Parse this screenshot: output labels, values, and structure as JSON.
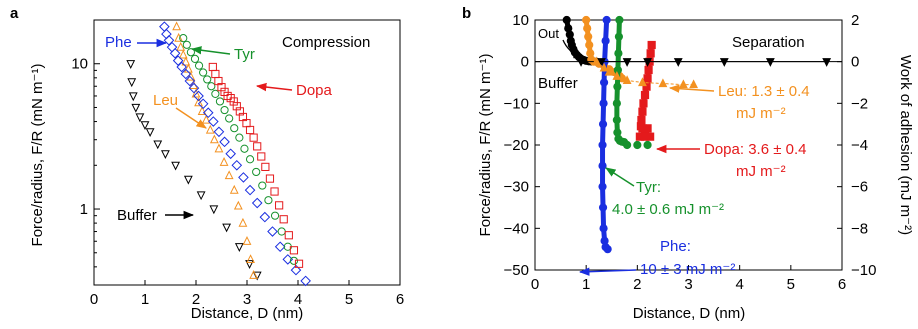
{
  "chart_data": [
    {
      "panel": "a",
      "type": "scatter",
      "title": "Compression",
      "xlabel": "Distance, D (nm)",
      "ylabel": "Force/radius, F/R (mN m⁻¹)",
      "xlim": [
        0,
        6
      ],
      "ylim": [
        0.3,
        20
      ],
      "yscale": "log",
      "xticks": [
        "0",
        "1",
        "2",
        "3",
        "4",
        "5",
        "6"
      ],
      "yticks": [
        {
          "value": 1,
          "label": "1"
        },
        {
          "value": 10,
          "label": "10"
        }
      ],
      "grid": false,
      "series": [
        {
          "name": "Buffer",
          "color": "#000000",
          "marker": "triangle-down",
          "points": [
            [
              0.72,
              10
            ],
            [
              0.74,
              7.5
            ],
            [
              0.77,
              6
            ],
            [
              0.82,
              5
            ],
            [
              0.9,
              4.3
            ],
            [
              1.0,
              3.8
            ],
            [
              1.1,
              3.4
            ],
            [
              1.25,
              2.8
            ],
            [
              1.4,
              2.4
            ],
            [
              1.6,
              2.0
            ],
            [
              1.85,
              1.6
            ],
            [
              2.1,
              1.25
            ],
            [
              2.35,
              1.0
            ],
            [
              2.6,
              0.75
            ],
            [
              2.85,
              0.55
            ],
            [
              3.05,
              0.42
            ],
            [
              3.2,
              0.35
            ]
          ]
        },
        {
          "name": "Leu",
          "color": "#f39120",
          "marker": "triangle-up",
          "points": [
            [
              1.62,
              18
            ],
            [
              1.66,
              15
            ],
            [
              1.7,
              13
            ],
            [
              1.75,
              11.5
            ],
            [
              1.8,
              10.3
            ],
            [
              1.85,
              9.2
            ],
            [
              1.9,
              8.1
            ],
            [
              1.95,
              7.1
            ],
            [
              2.0,
              6.2
            ],
            [
              2.05,
              5.4
            ],
            [
              2.12,
              4.7
            ],
            [
              2.2,
              4.1
            ],
            [
              2.28,
              3.5
            ],
            [
              2.36,
              3.0
            ],
            [
              2.45,
              2.6
            ],
            [
              2.55,
              2.1
            ],
            [
              2.65,
              1.7
            ],
            [
              2.75,
              1.35
            ],
            [
              2.83,
              1.05
            ],
            [
              2.92,
              0.8
            ],
            [
              3.0,
              0.6
            ],
            [
              3.07,
              0.45
            ],
            [
              3.13,
              0.35
            ]
          ]
        },
        {
          "name": "Phe",
          "color": "#1a2ee0",
          "marker": "diamond",
          "points": [
            [
              1.38,
              18
            ],
            [
              1.42,
              16
            ],
            [
              1.47,
              14.5
            ],
            [
              1.53,
              13
            ],
            [
              1.59,
              11.8
            ],
            [
              1.65,
              10.5
            ],
            [
              1.72,
              9.5
            ],
            [
              1.8,
              8.5
            ],
            [
              1.88,
              7.6
            ],
            [
              1.96,
              6.8
            ],
            [
              2.05,
              6.0
            ],
            [
              2.14,
              5.3
            ],
            [
              2.24,
              4.6
            ],
            [
              2.34,
              4.0
            ],
            [
              2.45,
              3.4
            ],
            [
              2.56,
              2.9
            ],
            [
              2.68,
              2.4
            ],
            [
              2.8,
              2.0
            ],
            [
              2.93,
              1.65
            ],
            [
              3.06,
              1.35
            ],
            [
              3.2,
              1.1
            ],
            [
              3.35,
              0.88
            ],
            [
              3.5,
              0.7
            ],
            [
              3.65,
              0.55
            ],
            [
              3.8,
              0.45
            ],
            [
              3.96,
              0.38
            ],
            [
              4.15,
              0.32
            ]
          ]
        },
        {
          "name": "Tyr",
          "color": "#16912c",
          "marker": "circle",
          "points": [
            [
              1.75,
              15
            ],
            [
              1.82,
              13.5
            ],
            [
              1.9,
              12
            ],
            [
              1.98,
              10.8
            ],
            [
              2.06,
              9.7
            ],
            [
              2.14,
              8.7
            ],
            [
              2.22,
              7.8
            ],
            [
              2.3,
              7.0
            ],
            [
              2.38,
              6.2
            ],
            [
              2.47,
              5.5
            ],
            [
              2.56,
              4.8
            ],
            [
              2.65,
              4.2
            ],
            [
              2.75,
              3.6
            ],
            [
              2.85,
              3.1
            ],
            [
              2.95,
              2.6
            ],
            [
              3.06,
              2.2
            ],
            [
              3.18,
              1.8
            ],
            [
              3.3,
              1.45
            ],
            [
              3.42,
              1.15
            ],
            [
              3.55,
              0.9
            ],
            [
              3.68,
              0.7
            ],
            [
              3.8,
              0.55
            ],
            [
              3.92,
              0.44
            ]
          ]
        },
        {
          "name": "Dopa",
          "color": "#e41a1c",
          "marker": "square",
          "points": [
            [
              2.33,
              9.5
            ],
            [
              2.38,
              8.5
            ],
            [
              2.44,
              7.6
            ],
            [
              2.5,
              6.9
            ],
            [
              2.56,
              6.4
            ],
            [
              2.62,
              6.0
            ],
            [
              2.68,
              5.8
            ],
            [
              2.74,
              5.5
            ],
            [
              2.8,
              5.1
            ],
            [
              2.86,
              4.7
            ],
            [
              2.92,
              4.3
            ],
            [
              2.99,
              3.9
            ],
            [
              3.06,
              3.5
            ],
            [
              3.13,
              3.1
            ],
            [
              3.2,
              2.7
            ],
            [
              3.28,
              2.3
            ],
            [
              3.36,
              1.95
            ],
            [
              3.45,
              1.62
            ],
            [
              3.54,
              1.32
            ],
            [
              3.63,
              1.06
            ],
            [
              3.72,
              0.85
            ],
            [
              3.82,
              0.66
            ],
            [
              3.92,
              0.52
            ],
            [
              4.02,
              0.42
            ]
          ]
        }
      ],
      "annotations": [
        {
          "text": "Phe",
          "color": "#1a2ee0"
        },
        {
          "text": "Tyr",
          "color": "#16912c"
        },
        {
          "text": "Leu",
          "color": "#f39120"
        },
        {
          "text": "Dopa",
          "color": "#e41a1c"
        },
        {
          "text": "Buffer",
          "color": "#000000"
        }
      ]
    },
    {
      "panel": "b",
      "type": "scatter",
      "title": "Separation",
      "xlabel": "Distance, D (nm)",
      "ylabel": "Force/radius, F/R (mN m⁻¹)",
      "y2label": "Work of adhesion (mJ m⁻²)",
      "xlim": [
        0,
        6
      ],
      "ylim": [
        -50,
        10
      ],
      "y2lim": [
        -10.5,
        2
      ],
      "xticks": [
        "0",
        "1",
        "2",
        "3",
        "4",
        "5",
        "6"
      ],
      "yticks": [
        "10",
        "0",
        "−10",
        "−20",
        "−30",
        "−40",
        "−50"
      ],
      "y2ticks": [
        "2",
        "0",
        "−2",
        "−4",
        "−6",
        "−8",
        "−10"
      ],
      "grid": false,
      "series": [
        {
          "name": "Buffer",
          "color": "#000000",
          "marker": "circle",
          "points": [
            [
              0.62,
              10
            ],
            [
              0.65,
              8
            ],
            [
              0.68,
              6.5
            ],
            [
              0.7,
              5
            ],
            [
              0.72,
              4
            ],
            [
              0.75,
              3
            ],
            [
              0.78,
              2.2
            ],
            [
              0.82,
              1.6
            ],
            [
              0.86,
              1.1
            ],
            [
              0.9,
              0.7
            ],
            [
              0.95,
              0.4
            ],
            [
              1.0,
              0.2
            ],
            [
              1.05,
              0.1
            ],
            [
              1.1,
              0.05
            ],
            [
              1.2,
              0
            ]
          ]
        },
        {
          "name": "Leu",
          "color": "#f39120",
          "marker": "circle",
          "points": [
            [
              1.0,
              10
            ],
            [
              1.02,
              8
            ],
            [
              1.04,
              6
            ],
            [
              1.06,
              4
            ],
            [
              1.08,
              2
            ],
            [
              1.1,
              0.5
            ],
            [
              1.15,
              0
            ],
            [
              1.25,
              -0.5
            ],
            [
              1.35,
              -1
            ],
            [
              1.45,
              -1.8
            ],
            [
              1.55,
              -2.5
            ],
            [
              1.62,
              -3
            ],
            [
              1.66,
              -3.5
            ],
            [
              1.7,
              -4
            ]
          ]
        },
        {
          "name": "Tyr",
          "color": "#16912c",
          "marker": "circle",
          "points": [
            [
              1.65,
              10
            ],
            [
              1.64,
              6
            ],
            [
              1.63,
              2
            ],
            [
              1.62,
              -2
            ],
            [
              1.61,
              -6
            ],
            [
              1.6,
              -10
            ],
            [
              1.6,
              -14
            ],
            [
              1.61,
              -17
            ],
            [
              1.63,
              -18.5
            ],
            [
              1.66,
              -19
            ],
            [
              1.7,
              -19.2
            ],
            [
              1.74,
              -19.3
            ]
          ]
        },
        {
          "name": "Dopa",
          "color": "#e41a1c",
          "marker": "square",
          "points": [
            [
              2.28,
              4
            ],
            [
              2.26,
              2
            ],
            [
              2.24,
              0
            ],
            [
              2.22,
              -2
            ],
            [
              2.2,
              -4
            ],
            [
              2.18,
              -6
            ],
            [
              2.15,
              -8
            ],
            [
              2.12,
              -10
            ],
            [
              2.1,
              -12
            ],
            [
              2.08,
              -14
            ],
            [
              2.07,
              -15.5
            ],
            [
              2.1,
              -16
            ],
            [
              2.15,
              -16.2
            ],
            [
              2.2,
              -16
            ]
          ]
        },
        {
          "name": "Phe",
          "color": "#1a2ee0",
          "marker": "circle",
          "points": [
            [
              1.4,
              10
            ],
            [
              1.38,
              5
            ],
            [
              1.36,
              0
            ],
            [
              1.35,
              -5
            ],
            [
              1.34,
              -10
            ],
            [
              1.33,
              -15
            ],
            [
              1.32,
              -20
            ],
            [
              1.32,
              -25
            ],
            [
              1.32,
              -30
            ],
            [
              1.33,
              -35
            ],
            [
              1.34,
              -40
            ],
            [
              1.36,
              -43
            ],
            [
              1.38,
              -44.5
            ],
            [
              1.42,
              -45
            ]
          ]
        },
        {
          "name": "Work of adhesion",
          "axis": "y2",
          "color": "#000000",
          "marker": "triangle-down",
          "connected": true,
          "points": [
            [
              0.9,
              0
            ],
            [
              1.3,
              0
            ],
            [
              1.8,
              0
            ],
            [
              2.2,
              0
            ],
            [
              2.8,
              0
            ],
            [
              3.7,
              0
            ],
            [
              4.6,
              0
            ],
            [
              5.7,
              0
            ]
          ]
        },
        {
          "name": "Leu work",
          "axis": "y2",
          "color": "#f39120",
          "marker": "triangle-up",
          "connected": true,
          "points": [
            [
              1.2,
              0
            ],
            [
              1.35,
              -0.3
            ],
            [
              1.45,
              -0.5
            ],
            [
              1.6,
              -0.7
            ],
            [
              1.8,
              -0.9
            ],
            [
              2.1,
              -1.0
            ],
            [
              2.5,
              -1.05
            ],
            [
              2.9,
              -1.1
            ],
            [
              3.1,
              -1.1
            ]
          ]
        },
        {
          "name": "Dopa work",
          "axis": "y2",
          "color": "#e41a1c",
          "marker": "square",
          "points": [
            [
              2.05,
              -3.6
            ],
            [
              2.15,
              -3.6
            ],
            [
              2.25,
              -3.6
            ]
          ]
        },
        {
          "name": "Tyr work",
          "axis": "y2",
          "color": "#16912c",
          "marker": "circle",
          "points": [
            [
              1.8,
              -4.0
            ],
            [
              2.0,
              -4.0
            ],
            [
              2.2,
              -4.0
            ]
          ]
        }
      ],
      "annotations": [
        {
          "text": "Out",
          "color": "#000000"
        },
        {
          "text": "Buffer",
          "color": "#000000"
        },
        {
          "text": "Leu: 1.3 ± 0.4",
          "color": "#f39120"
        },
        {
          "text": "mJ m⁻²",
          "color": "#f39120"
        },
        {
          "text": "Dopa: 3.6 ± 0.4",
          "color": "#e41a1c"
        },
        {
          "text": "mJ m⁻²",
          "color": "#e41a1c"
        },
        {
          "text": "Tyr:",
          "color": "#16912c"
        },
        {
          "text": "4.0 ± 0.6 mJ m⁻²",
          "color": "#16912c"
        },
        {
          "text": "Phe:",
          "color": "#1a2ee0"
        },
        {
          "text": "10 ± 3 mJ m⁻²",
          "color": "#1a2ee0"
        }
      ]
    }
  ]
}
